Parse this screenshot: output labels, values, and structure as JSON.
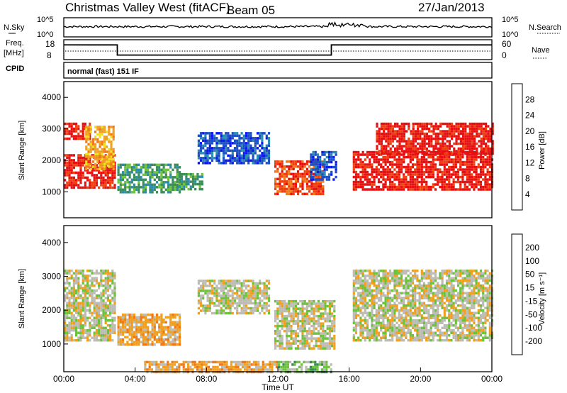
{
  "header": {
    "title": "Christmas Valley West (fitACF)",
    "beam": "Beam 05",
    "date": "27/Jan/2013"
  },
  "sky_panel": {
    "left_label": "N.Sky",
    "left_ticks": [
      "10^5",
      "10^0"
    ],
    "right_ticks": [
      "10^5",
      "10^0"
    ],
    "right_label": "N.Search"
  },
  "freq_panel": {
    "left_label_line1": "Freq.",
    "left_label_line2": "[MHz]",
    "left_ticks": [
      "18",
      "8"
    ],
    "right_ticks": [
      "60",
      "0"
    ],
    "right_label": "Nave",
    "freq_steps": [
      {
        "t": 0.0,
        "mhz": 15.4
      },
      {
        "t": 3.0,
        "mhz": 10.3
      },
      {
        "t": 15.0,
        "mhz": 15.4
      },
      {
        "t": 24.0,
        "mhz": 15.4
      }
    ]
  },
  "cpid": {
    "label": "CPID",
    "mode": "normal (fast) 151 IF"
  },
  "chart_data": [
    {
      "type": "heatmap",
      "name": "power",
      "ylabel": "Slant Range [km]",
      "yticks": [
        "1000",
        "2000",
        "3000",
        "4000"
      ],
      "ylim": [
        180,
        4500
      ],
      "xlim": [
        0,
        24
      ],
      "colorbar": {
        "label": "Power [dB]",
        "ticks": [
          "4",
          "8",
          "12",
          "16",
          "20",
          "24",
          "28"
        ],
        "colors": [
          "#0a19f0",
          "#1c4ec4",
          "#2a8cb0",
          "#3a8c58",
          "#6fc23c",
          "#b4d424",
          "#f0e020",
          "#f0a020",
          "#f07818",
          "#ee4010",
          "#e61010"
        ]
      },
      "regions": [
        {
          "t0": 0.0,
          "t1": 2.8,
          "r0": 1100,
          "r1": 2200,
          "level": 10
        },
        {
          "t0": 0.0,
          "t1": 1.5,
          "r0": 2700,
          "r1": 3200,
          "level": 10
        },
        {
          "t0": 1.2,
          "t1": 2.8,
          "r0": 1700,
          "r1": 3100,
          "level": 7
        },
        {
          "t0": 3.0,
          "t1": 6.5,
          "r0": 1000,
          "r1": 1900,
          "level": 3
        },
        {
          "t0": 6.3,
          "t1": 7.8,
          "r0": 1100,
          "r1": 1600,
          "level": 3
        },
        {
          "t0": 7.5,
          "t1": 11.5,
          "r0": 1900,
          "r1": 2900,
          "level": 1
        },
        {
          "t0": 11.8,
          "t1": 14.5,
          "r0": 900,
          "r1": 2000,
          "level": 9
        },
        {
          "t0": 13.8,
          "t1": 15.2,
          "r0": 1400,
          "r1": 2300,
          "level": 1
        },
        {
          "t0": 16.2,
          "t1": 24.0,
          "r0": 1100,
          "r1": 2300,
          "level": 10
        },
        {
          "t0": 17.5,
          "t1": 24.0,
          "r0": 2200,
          "r1": 3200,
          "level": 10
        }
      ]
    },
    {
      "type": "heatmap",
      "name": "velocity",
      "ylabel": "Slant Range [km]",
      "yticks": [
        "1000",
        "2000",
        "3000",
        "4000"
      ],
      "ylim": [
        180,
        4500
      ],
      "xlim": [
        0,
        24
      ],
      "xticks": [
        "00:00",
        "04:00",
        "08:00",
        "12:00",
        "16:00",
        "20:00",
        "00:00"
      ],
      "xlabel": "Time UT",
      "colorbar": {
        "label": "Velocity [m s⁻¹]",
        "ticks": [
          "200",
          "100",
          "50",
          "15",
          "-15",
          "-50",
          "-100",
          "-200"
        ],
        "colors": [
          "#1c3ab4",
          "#2a6e9c",
          "#3c8c5a",
          "#6cc23c",
          "#bcbcb4",
          "#f0a020",
          "#f07818",
          "#ee4010",
          "#e61010"
        ]
      },
      "regions": [
        {
          "t0": 0.0,
          "t1": 2.8,
          "r0": 1100,
          "r1": 3200,
          "level": 4
        },
        {
          "t0": 3.0,
          "t1": 6.5,
          "r0": 1000,
          "r1": 1900,
          "level": 5
        },
        {
          "t0": 7.5,
          "t1": 11.5,
          "r0": 1900,
          "r1": 2900,
          "level": 4
        },
        {
          "t0": 11.8,
          "t1": 15.2,
          "r0": 900,
          "r1": 2300,
          "level": 4
        },
        {
          "t0": 16.2,
          "t1": 24.0,
          "r0": 1100,
          "r1": 3200,
          "level": 4
        },
        {
          "t0": 4.5,
          "t1": 12.0,
          "r0": 200,
          "r1": 500,
          "level": 5
        },
        {
          "t0": 12.0,
          "t1": 15.0,
          "r0": 200,
          "r1": 500,
          "level": 3
        }
      ]
    }
  ]
}
